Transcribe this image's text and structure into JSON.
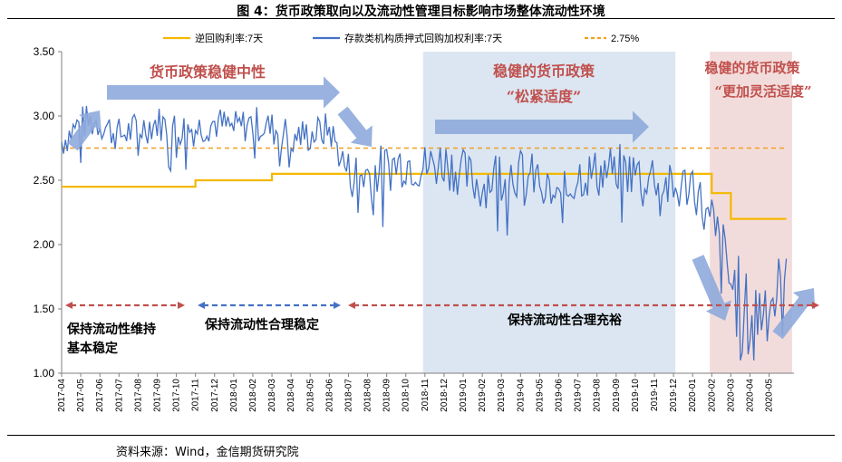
{
  "figure": {
    "title": "图 4：货币政策取向以及流动性管理目标影响市场整体流动性环境",
    "source": "资料来源：Wind，金信期货研究院"
  },
  "chart_data": {
    "type": "line",
    "yticks": [
      "3.50",
      "3.00",
      "2.50",
      "2.00",
      "1.50",
      "1.00"
    ],
    "ylim": [
      1.0,
      3.5
    ],
    "xticks": [
      "2017-04",
      "2017-05",
      "2017-06",
      "2017-07",
      "2017-08",
      "2017-09",
      "2017-10",
      "2017-11",
      "2017-12",
      "2018-01",
      "2018-02",
      "2018-03",
      "2018-04",
      "2018-05",
      "2018-06",
      "2018-07",
      "2018-08",
      "2018-09",
      "2018-10",
      "2018-11",
      "2018-12",
      "2019-01",
      "2019-02",
      "2019-03",
      "2019-04",
      "2019-05",
      "2019-06",
      "2019-07",
      "2019-08",
      "2019-09",
      "2019-10",
      "2019-11",
      "2019-12",
      "2020-01",
      "2020-02",
      "2020-03",
      "2020-04",
      "2020-05"
    ],
    "legend": [
      {
        "name": "逆回购利率:7天",
        "color": "#f5b800",
        "style": "solid"
      },
      {
        "name": "存款类机构质押式回购加权利率:7天",
        "color": "#4472c4",
        "style": "solid"
      },
      {
        "name": "2.75%",
        "color": "#f0a020",
        "style": "dashed"
      }
    ],
    "reference_line": 2.75,
    "reverse_repo_steps": [
      {
        "from": "2017-04",
        "to": "2017-11",
        "value": 2.45
      },
      {
        "from": "2017-11",
        "to": "2018-03",
        "value": 2.5
      },
      {
        "from": "2018-03",
        "to": "2020-02",
        "value": 2.55
      },
      {
        "from": "2020-02",
        "to": "2020-03",
        "value": 2.4
      },
      {
        "from": "2020-03",
        "to": "2020-06",
        "value": 2.2
      }
    ],
    "pledged_repo_monthly": [
      {
        "x": "2017-04",
        "y": 2.8
      },
      {
        "x": "2017-05",
        "y": 2.95
      },
      {
        "x": "2017-06",
        "y": 2.95
      },
      {
        "x": "2017-07",
        "y": 2.85
      },
      {
        "x": "2017-08",
        "y": 2.9
      },
      {
        "x": "2017-09",
        "y": 2.95
      },
      {
        "x": "2017-10",
        "y": 2.9
      },
      {
        "x": "2017-11",
        "y": 2.9
      },
      {
        "x": "2017-12",
        "y": 2.95
      },
      {
        "x": "2018-01",
        "y": 2.9
      },
      {
        "x": "2018-02",
        "y": 2.95
      },
      {
        "x": "2018-03",
        "y": 2.9
      },
      {
        "x": "2018-04",
        "y": 2.85
      },
      {
        "x": "2018-05",
        "y": 2.85
      },
      {
        "x": "2018-06",
        "y": 2.9
      },
      {
        "x": "2018-07",
        "y": 2.55
      },
      {
        "x": "2018-08",
        "y": 2.55
      },
      {
        "x": "2018-09",
        "y": 2.6
      },
      {
        "x": "2018-10",
        "y": 2.65
      },
      {
        "x": "2018-11",
        "y": 2.6
      },
      {
        "x": "2018-12",
        "y": 2.65
      },
      {
        "x": "2019-01",
        "y": 2.55
      },
      {
        "x": "2019-02",
        "y": 2.45
      },
      {
        "x": "2019-03",
        "y": 2.6
      },
      {
        "x": "2019-04",
        "y": 2.55
      },
      {
        "x": "2019-05",
        "y": 2.5
      },
      {
        "x": "2019-06",
        "y": 2.3
      },
      {
        "x": "2019-07",
        "y": 2.55
      },
      {
        "x": "2019-08",
        "y": 2.55
      },
      {
        "x": "2019-09",
        "y": 2.6
      },
      {
        "x": "2019-10",
        "y": 2.55
      },
      {
        "x": "2019-11",
        "y": 2.55
      },
      {
        "x": "2019-12",
        "y": 2.4
      },
      {
        "x": "2020-01",
        "y": 2.5
      },
      {
        "x": "2020-02",
        "y": 2.1
      },
      {
        "x": "2020-03",
        "y": 1.7
      },
      {
        "x": "2020-04",
        "y": 1.4
      },
      {
        "x": "2020-05",
        "y": 1.6
      }
    ],
    "shaded_periods": [
      {
        "from": "2018-11",
        "to": "2019-12",
        "color": "#dce6f2"
      },
      {
        "from": "2020-02",
        "to": "2020-06",
        "color": "#f2dcdb"
      }
    ],
    "annotations": {
      "neutral": "货币政策稳健中性",
      "tight_title": "稳健的货币政策",
      "tight_sub": "“松紧适度”",
      "flexible_title": "稳健的货币政策",
      "flexible_sub": "“更加灵活适度”",
      "liq_stable_1": "保持流动性维持",
      "liq_stable_2": "基本稳定",
      "liq_reasonable": "保持流动性合理稳定",
      "liq_ample": "保持流动性合理充裕"
    }
  }
}
